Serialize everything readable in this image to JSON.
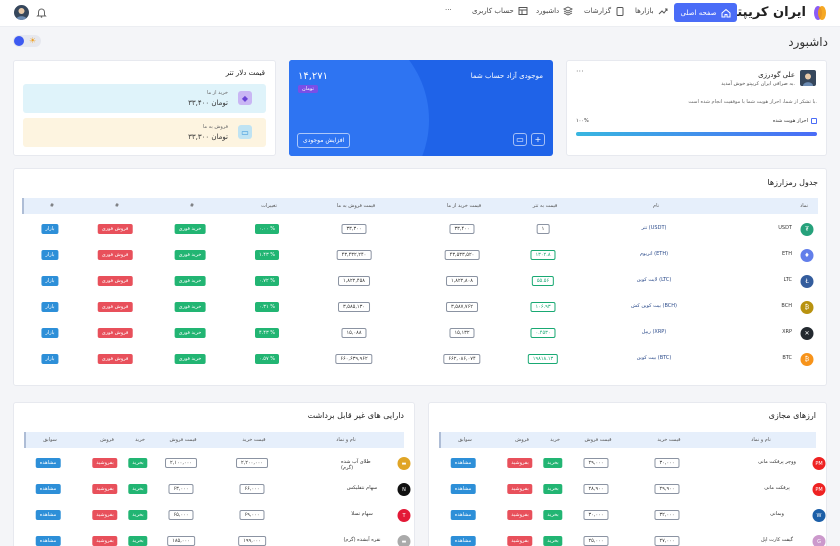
{
  "brand": {
    "name": "ایران کریپتو"
  },
  "nav": {
    "home": "صفحه اصلی",
    "items": [
      "بازارها",
      "گزارشات",
      "داشبورد",
      "حساب کاربری"
    ],
    "more": "···"
  },
  "page": {
    "title": "داشبورد"
  },
  "profile": {
    "name": "علی گودرزی",
    "welcome": "به صرافی ایران کریپتو خوش آمدید.",
    "message": "با تشکر از شما، احراز هویت شما با موفقیت انجام شده است.",
    "verify_label": "احراز هویت شده",
    "progress_label": "۱۰۰%",
    "progress": 1.0,
    "menu": "···"
  },
  "balance": {
    "title": "موجودی آزاد حساب شما",
    "amount": "۱۴,۲۷۱",
    "unit": "تومان",
    "button": "افزایش موجودی",
    "icon_card": "▭",
    "icon_plus": "+"
  },
  "usdt": {
    "title": "قیمت دلار تتر",
    "buy_label": "خرید از ما",
    "buy_value": "۳۳,۴۰۰ تومان",
    "sell_label": "فروش به ما",
    "sell_value": "۳۳,۳۰۰ تومان"
  },
  "crypto_table": {
    "title": "جدول رمزارزها",
    "headers": [
      "نماد",
      "نام",
      "قیمت به تتر",
      "قیمت خرید از ما",
      "قیمت فروش به ما",
      "تغییرات",
      "#",
      "#",
      "#"
    ],
    "rows": [
      {
        "symbol": "USDT",
        "name": "تتر (USDT)",
        "usdt_price": "۱",
        "buy": "۳۳,۴۰۰",
        "sell": "۳۳,۳۰۰",
        "change": "۰.۰۰ %",
        "color": "#26a17b",
        "glyph": "₮"
      },
      {
        "symbol": "ETH",
        "name": "اتریوم (ETH)",
        "usdt_price": "۱۳۰۲.۸",
        "buy": "۴۳,۵۳۳,۵۲۰",
        "sell": "۴۳,۴۳۲,۲۴۰",
        "change": "۱.۴۳ %",
        "color": "#627eea",
        "glyph": "♦"
      },
      {
        "symbol": "LTC",
        "name": "لایت کوین (LTC)",
        "usdt_price": "۵۵.۵۶",
        "buy": "۱,۸۲۲,۸۰۸",
        "sell": "۱,۸۲۲,۴۵۸",
        "change": "۰.۷۲ %",
        "color": "#345d9d",
        "glyph": "Ł"
      },
      {
        "symbol": "BCH",
        "name": "بیت کوین کش (BCH)",
        "usdt_price": "۱۰۶.۹۳",
        "buy": "۳,۵۸۷,۷۶۲",
        "sell": "۳,۵۸۵,۱۳۰",
        "change": "۰.۳۱ %",
        "color": "#b8920f",
        "glyph": "₿"
      },
      {
        "symbol": "XRP",
        "name": "ریپل (XRP)",
        "usdt_price": "۰.۴۵۳۰",
        "buy": "۱۵,۱۳۲",
        "sell": "۱۵,۰۸۸",
        "change": "۴.۴۳ %",
        "color": "#23292f",
        "glyph": "✕"
      },
      {
        "symbol": "BTC",
        "name": "بیت کوین (BTC)",
        "usdt_price": "۱۹۸۱۸.۱۳",
        "buy": "۶۶۲,۰۸۶,۰۷۴",
        "sell": "۶۶۰,۶۳۹,۹۶۲",
        "change": "۰.۵۷ %",
        "color": "#f7931a",
        "glyph": "₿"
      }
    ],
    "buy_label": "خرید فوری",
    "sell_label": "فروش فوری",
    "market_label": "بازار"
  },
  "currencies": {
    "title": "ارزهای مجازی",
    "headers": [
      "نام و نماد",
      "قیمت خرید",
      "قیمت فروش",
      "خرید",
      "فروش",
      "سوابق"
    ],
    "rows": [
      {
        "name": "ووچر پرفکت مانی",
        "buy": "۳۰,۰۰۰",
        "sell": "۲۹,۰۰۰",
        "color": "#e22",
        "glyph": "PM"
      },
      {
        "name": "پرفکت مانی",
        "buy": "۲۹,۹۰۰",
        "sell": "۲۸,۹۰۰",
        "color": "#e22",
        "glyph": "PM"
      },
      {
        "name": "وبمانی",
        "buy": "۳۲,۰۰۰",
        "sell": "۳۰,۰۰۰",
        "color": "#1c5fa8",
        "glyph": "W"
      },
      {
        "name": "گیفت کارت اپل",
        "buy": "۲۷,۰۰۰",
        "sell": "۲۵,۰۰۰",
        "color": "#c9c",
        "glyph": "G"
      }
    ],
    "buy_label": "بخرید",
    "sell_label": "بفروشید",
    "view_label": "مشاهده"
  },
  "assets": {
    "title": "دارایی های غیر قابل برداشت",
    "headers": [
      "نام و نماد",
      "قیمت خرید",
      "قیمت فروش",
      "خرید",
      "فروش",
      "سوابق"
    ],
    "rows": [
      {
        "name": "طلای آب شده (گرم)",
        "buy": "۲,۲۰۰,۰۰۰",
        "sell": "۲,۱۰۰,۰۰۰",
        "color": "#e0a526",
        "glyph": "▬"
      },
      {
        "name": "سهام نتفلیکس",
        "buy": "۶۶,۰۰۰",
        "sell": "۶۳,۰۰۰",
        "color": "#111",
        "glyph": "N"
      },
      {
        "name": "سهام تسلا",
        "buy": "۶۹,۰۰۰",
        "sell": "۶۵,۰۰۰",
        "color": "#e31937",
        "glyph": "T"
      },
      {
        "name": "نقره آبشده (گرم)",
        "buy": "۱۹۹,۰۰۰",
        "sell": "۱۸۵,۰۰۰",
        "color": "#aaa",
        "glyph": "▬"
      }
    ],
    "buy_label": "بخرید",
    "sell_label": "بفروشید",
    "view_label": "مشاهده"
  },
  "colors": {
    "primary": "#4a6cf7",
    "green": "#22b573",
    "red": "#e8505b",
    "blue": "#2d8fd8"
  }
}
